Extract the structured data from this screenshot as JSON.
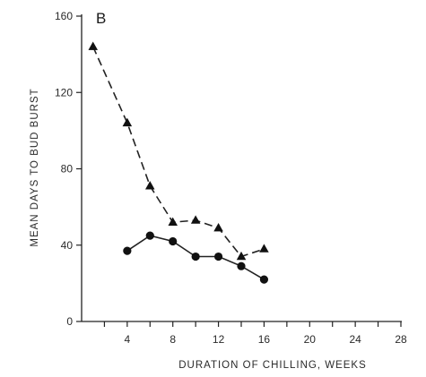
{
  "chart_data": {
    "type": "line",
    "panel_label": "B",
    "xlabel": "DURATION OF CHILLING, WEEKS",
    "ylabel": "MEAN DAYS TO BUD BURST",
    "xlim": [
      0,
      28
    ],
    "ylim": [
      0,
      160
    ],
    "xticks": [
      4,
      8,
      12,
      16,
      20,
      24,
      28
    ],
    "yticks": [
      0,
      40,
      80,
      120,
      160
    ],
    "xminor": [
      2,
      6,
      10,
      14,
      18,
      22,
      26
    ],
    "grid": false,
    "series": [
      {
        "marker": "triangle",
        "line_style": "dashed",
        "x": [
          1,
          4,
          6,
          8,
          10,
          12,
          14,
          16
        ],
        "y": [
          144,
          104,
          71,
          52,
          53,
          49,
          34,
          38
        ]
      },
      {
        "marker": "circle",
        "line_style": "solid",
        "x": [
          4,
          6,
          8,
          10,
          12,
          14,
          16
        ],
        "y": [
          37,
          45,
          42,
          34,
          34,
          29,
          22
        ]
      }
    ]
  }
}
